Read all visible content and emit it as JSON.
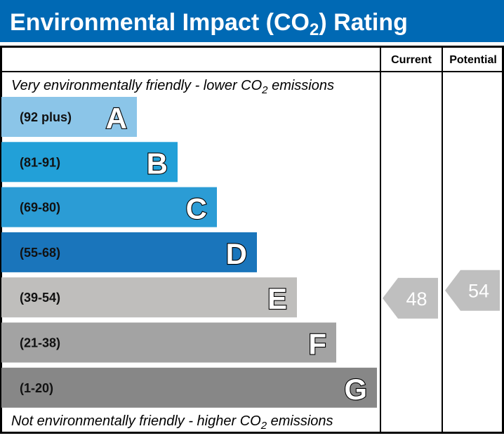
{
  "title": {
    "prefix": "Environmental Impact (CO",
    "sub": "2",
    "suffix": ") Rating"
  },
  "header": {
    "current": "Current",
    "potential": "Potential"
  },
  "top_note": {
    "prefix": "Very environmentally friendly - lower CO",
    "sub": "2",
    "suffix": " emissions"
  },
  "bottom_note": {
    "prefix": "Not environmentally friendly - higher CO",
    "sub": "2",
    "suffix": " emissions"
  },
  "colors": {
    "title_bg": "#0069b4",
    "arrow": "#bfbfbf"
  },
  "chart_data": {
    "type": "bar",
    "bands": [
      {
        "letter": "A",
        "range": "(92 plus)",
        "min": 92,
        "max": 100,
        "color": "#8bc5e8"
      },
      {
        "letter": "B",
        "range": "(81-91)",
        "min": 81,
        "max": 91,
        "color": "#22a0d8"
      },
      {
        "letter": "C",
        "range": "(69-80)",
        "min": 69,
        "max": 80,
        "color": "#2b9cd5"
      },
      {
        "letter": "D",
        "range": "(55-68)",
        "min": 55,
        "max": 68,
        "color": "#1a75bb"
      },
      {
        "letter": "E",
        "range": "(39-54)",
        "min": 39,
        "max": 54,
        "color": "#bfbebc"
      },
      {
        "letter": "F",
        "range": "(21-38)",
        "min": 21,
        "max": 38,
        "color": "#a3a3a3"
      },
      {
        "letter": "G",
        "range": "(1-20)",
        "min": 1,
        "max": 20,
        "color": "#878787"
      }
    ],
    "current": {
      "value": 48,
      "label": "48",
      "band": "E"
    },
    "potential": {
      "value": 54,
      "label": "54",
      "band": "E"
    }
  }
}
